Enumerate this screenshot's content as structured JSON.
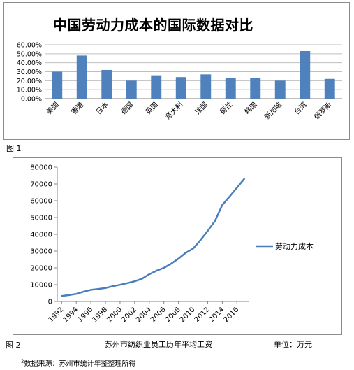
{
  "figure1": {
    "label": "图 1",
    "chart_data": {
      "type": "bar",
      "title": "中国劳动力成本的国际数据对比",
      "categories": [
        "美国",
        "香港",
        "日本",
        "德国",
        "英国",
        "意大利",
        "法国",
        "荷兰",
        "韩国",
        "新加坡",
        "台湾",
        "俄罗斯"
      ],
      "values": [
        0.3,
        0.48,
        0.32,
        0.2,
        0.26,
        0.24,
        0.27,
        0.23,
        0.23,
        0.2,
        0.53,
        0.22
      ],
      "ylim": [
        0,
        0.6
      ],
      "yticks": [
        "0.00%",
        "10.00%",
        "20.00%",
        "30.00%",
        "40.00%",
        "50.00%",
        "60.00%"
      ],
      "grid": true,
      "bar_color": "#4f81bd"
    }
  },
  "figure2": {
    "label": "图 2",
    "caption": "苏州市纺织业员工历年平均工资",
    "unit": "单位：万元",
    "chart_data": {
      "type": "line",
      "x": [
        1992,
        1993,
        1994,
        1995,
        1996,
        1997,
        1998,
        1999,
        2000,
        2001,
        2002,
        2003,
        2004,
        2005,
        2006,
        2007,
        2008,
        2009,
        2010,
        2011,
        2012,
        2013,
        2014,
        2015,
        2016,
        2017
      ],
      "series": [
        {
          "name": "劳动力成本",
          "values": [
            3200,
            3800,
            4500,
            5800,
            6900,
            7400,
            8000,
            9100,
            9900,
            10900,
            12000,
            13500,
            16200,
            18300,
            20000,
            22500,
            25500,
            29000,
            31500,
            36500,
            42000,
            48000,
            57500,
            62500,
            67800,
            73000
          ]
        }
      ],
      "ylim": [
        0,
        80000
      ],
      "yticks": [
        "0",
        "10000",
        "20000",
        "30000",
        "40000",
        "50000",
        "60000",
        "70000",
        "80000"
      ],
      "xticks": [
        "1992",
        "1994",
        "1996",
        "1998",
        "2000",
        "2002",
        "2004",
        "2006",
        "2008",
        "2010",
        "2012",
        "2014",
        "2016"
      ],
      "grid": false,
      "legend_position": "right",
      "line_color": "#4a7ebb"
    }
  },
  "source": {
    "mark": "2",
    "text": "数据来源：苏州市统计年鉴整理所得"
  }
}
